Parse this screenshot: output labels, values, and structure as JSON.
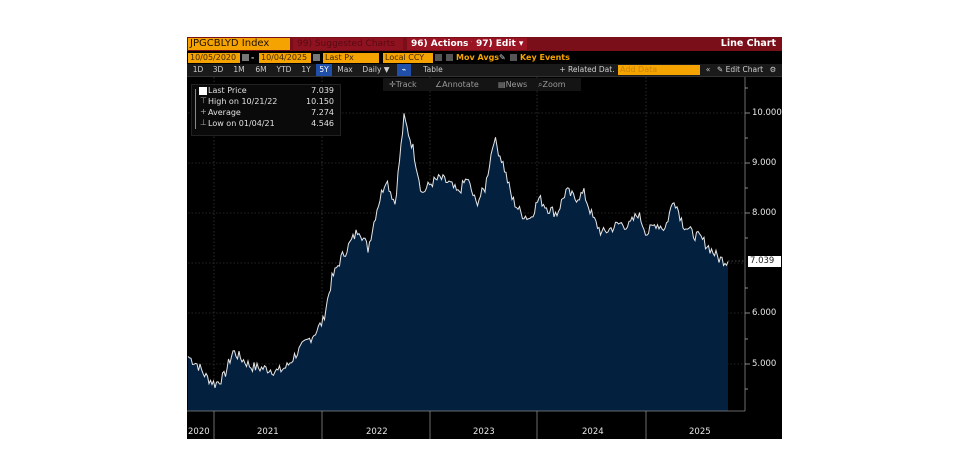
{
  "header": {
    "ticker": "JPGCBLYD Index",
    "suggested_charts": "99) Suggested Charts",
    "actions": "96) Actions",
    "edit": "97) Edit",
    "chart_type": "Line Chart"
  },
  "controls": {
    "start_date": "10/05/2020",
    "end_date": "10/04/2025",
    "date_separator": "-",
    "field": "Last Px",
    "currency": "Local CCY",
    "mov_avgs": "Mov Avgs",
    "key_events": "Key Events"
  },
  "ranges": {
    "items": [
      "1D",
      "3D",
      "1M",
      "6M",
      "YTD",
      "1Y",
      "5Y",
      "Max"
    ],
    "selected": "5Y",
    "frequency": "Daily",
    "table": "Table",
    "related_data": "+ Related Dat.",
    "add_data_placeholder": "Add Data",
    "edit_chart": "Edit Chart"
  },
  "tools": {
    "track": "Track",
    "annotate": "Annotate",
    "news": "News",
    "zoom": "Zoom"
  },
  "legend": {
    "last_label": "Last Price",
    "last_value": "7.039",
    "high_label": "High on 10/21/22",
    "high_value": "10.150",
    "avg_label": "Average",
    "avg_value": "7.274",
    "low_label": "Low on 01/04/21",
    "low_value": "4.546"
  },
  "axis": {
    "y_ticks": [
      "10.000",
      "9.000",
      "8.000",
      "6.000",
      "5.000"
    ],
    "last_marker": "7.039",
    "x_labels": [
      "2020",
      "2021",
      "2022",
      "2023",
      "2024",
      "2025"
    ]
  },
  "colors": {
    "ticker_bg": "#f5a300",
    "header_bg": "#7a0e19",
    "area_fill": "#04203f",
    "line": "#e8e8e8",
    "selected_range": "#1f4fa8"
  },
  "chart_data": {
    "type": "area",
    "title": "JPGCBLYD Index - Last Price (Daily, 5Y)",
    "xlabel": "",
    "ylabel": "",
    "ylim": [
      4.0,
      10.5
    ],
    "y_ticks": [
      5,
      6,
      7,
      8,
      9,
      10
    ],
    "grid": true,
    "legend_position": "top-left",
    "x": [
      "2020-10",
      "2020-11",
      "2020-12",
      "2021-01",
      "2021-02",
      "2021-03",
      "2021-04",
      "2021-05",
      "2021-06",
      "2021-07",
      "2021-08",
      "2021-09",
      "2021-10",
      "2021-11",
      "2021-12",
      "2022-01",
      "2022-02",
      "2022-03",
      "2022-04",
      "2022-05",
      "2022-06",
      "2022-07",
      "2022-08",
      "2022-09",
      "2022-10",
      "2022-11",
      "2022-12",
      "2023-01",
      "2023-02",
      "2023-03",
      "2023-04",
      "2023-05",
      "2023-06",
      "2023-07",
      "2023-08",
      "2023-09",
      "2023-10",
      "2023-11",
      "2023-12",
      "2024-01",
      "2024-02",
      "2024-03",
      "2024-04",
      "2024-05",
      "2024-06",
      "2024-07",
      "2024-08",
      "2024-09",
      "2024-10",
      "2024-11",
      "2024-12",
      "2025-01",
      "2025-02",
      "2025-03",
      "2025-04",
      "2025-05",
      "2025-06",
      "2025-07",
      "2025-08",
      "2025-09",
      "2025-10"
    ],
    "series": [
      {
        "name": "Last Price",
        "values": [
          5.15,
          5.0,
          4.75,
          4.6,
          4.75,
          5.25,
          5.1,
          4.95,
          4.92,
          4.9,
          4.85,
          4.95,
          5.2,
          5.4,
          5.6,
          5.85,
          6.7,
          7.1,
          7.4,
          7.7,
          7.3,
          8.1,
          8.7,
          8.2,
          9.9,
          9.3,
          8.4,
          8.6,
          8.7,
          8.6,
          8.4,
          8.7,
          8.2,
          8.5,
          9.5,
          9.0,
          8.3,
          8.0,
          7.9,
          8.3,
          8.1,
          8.0,
          8.45,
          8.3,
          8.4,
          7.9,
          7.6,
          7.7,
          7.8,
          7.75,
          8.0,
          7.6,
          7.8,
          7.7,
          8.3,
          7.8,
          7.6,
          7.5,
          7.3,
          7.1,
          7.04
        ]
      }
    ],
    "annotations": {
      "last": 7.039,
      "high": {
        "date": "10/21/22",
        "value": 10.15
      },
      "average": 7.274,
      "low": {
        "date": "01/04/21",
        "value": 4.546
      }
    }
  }
}
